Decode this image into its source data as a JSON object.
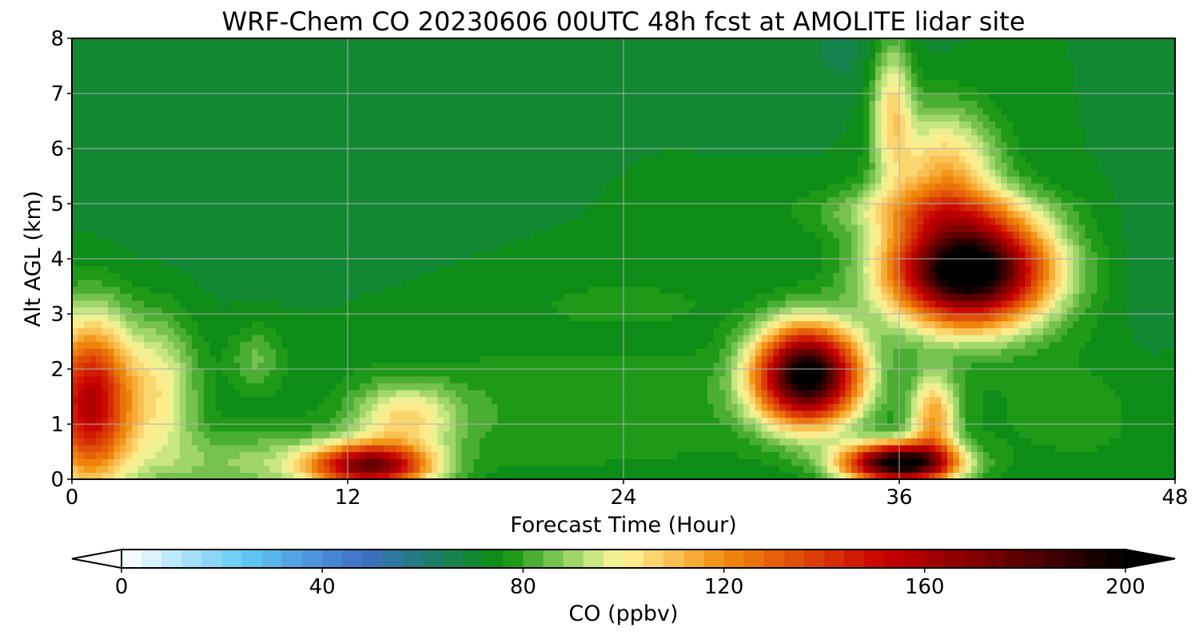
{
  "chart_data": {
    "type": "heatmap",
    "title": "WRF-Chem CO  20230606 00UTC 48h fcst at AMOLITE lidar site",
    "xlabel": "Forecast Time (Hour)",
    "ylabel": "Alt AGL (km)",
    "xlim": [
      0,
      48
    ],
    "ylim": [
      0,
      8
    ],
    "xticks": [
      0,
      12,
      24,
      36,
      48
    ],
    "yticks": [
      0,
      1,
      2,
      3,
      4,
      5,
      6,
      7,
      8
    ],
    "grid": true,
    "colorbar": {
      "label": "CO  (ppbv)",
      "min": 0,
      "max": 200,
      "step": 4,
      "ticks": [
        0,
        40,
        80,
        120,
        160,
        200
      ],
      "extend": "both",
      "orientation": "horizontal",
      "colors": {
        "0": "#ffffff",
        "25": "#5fc8f4",
        "48": "#3f6fc7",
        "60": "#1f7c78",
        "76": "#0a8f0a",
        "92": "#b5e07a",
        "100": "#fff69a",
        "120": "#f28c0c",
        "152": "#c80000",
        "176": "#6a0000",
        "200": "#000000"
      }
    },
    "background_ppbv": 72,
    "features": [
      {
        "t": 0.8,
        "z": 1.4,
        "peak_ppbv": 158,
        "note": "surface plume at start"
      },
      {
        "t": 13,
        "z": 0.25,
        "peak_ppbv": 168,
        "note": "near-surface plume"
      },
      {
        "t": 32,
        "z": 1.9,
        "peak_ppbv": 205,
        "note": "lower layer maximum"
      },
      {
        "t": 36,
        "z": 0.3,
        "peak_ppbv": 205,
        "note": "near-surface maximum"
      },
      {
        "t": 39,
        "z": 3.8,
        "peak_ppbv": 215,
        "note": "elevated layer maximum"
      },
      {
        "t": 35.7,
        "z": 6.8,
        "peak_ppbv": 104,
        "note": "upper tongue"
      }
    ]
  }
}
